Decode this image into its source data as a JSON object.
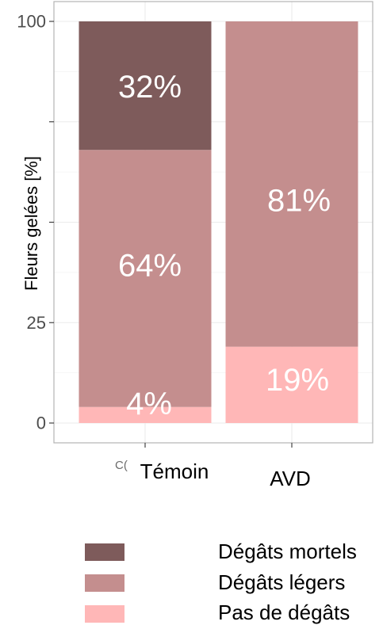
{
  "chart_data": {
    "type": "bar",
    "stacked": true,
    "categories": [
      "Témoin",
      "AVD"
    ],
    "series": [
      {
        "name": "Pas de dégâts",
        "values": [
          4,
          19
        ],
        "labels": [
          "4%",
          "19%"
        ],
        "color": "#FFB7B7"
      },
      {
        "name": "Dégâts légers",
        "values": [
          64,
          81
        ],
        "labels": [
          "64%",
          "81%"
        ],
        "color": "#C48E8E"
      },
      {
        "name": "Dégâts mortels",
        "values": [
          32,
          0
        ],
        "labels": [
          "32%",
          null
        ],
        "color": "#7E5B5B"
      }
    ],
    "ylabel": "Fleurs gelées [%]",
    "ylim": [
      0,
      100
    ],
    "yticks": [
      0,
      25,
      50,
      75,
      100
    ],
    "ytick_labels": [
      "0",
      "25",
      null,
      null,
      "100"
    ],
    "grid": true,
    "legend_position": "bottom",
    "data_label_color": "#FFFFFF",
    "stray_text": "C("
  }
}
